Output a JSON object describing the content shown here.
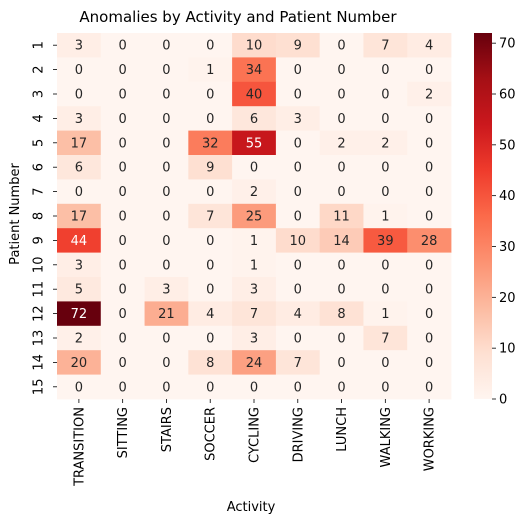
{
  "chart_data": {
    "type": "heatmap",
    "title": "Anomalies by Activity and Patient Number",
    "xlabel": "Activity",
    "ylabel": "Patient Number",
    "x_categories": [
      "TRANSITION",
      "SITTING",
      "STAIRS",
      "SOCCER",
      "CYCLING",
      "DRIVING",
      "LUNCH",
      "WALKING",
      "WORKING"
    ],
    "y_categories": [
      "1",
      "2",
      "3",
      "4",
      "5",
      "6",
      "7",
      "8",
      "9",
      "10",
      "11",
      "12",
      "13",
      "14",
      "15"
    ],
    "values": [
      [
        3,
        0,
        0,
        0,
        10,
        9,
        0,
        7,
        4
      ],
      [
        0,
        0,
        0,
        1,
        34,
        0,
        0,
        0,
        0
      ],
      [
        0,
        0,
        0,
        0,
        40,
        0,
        0,
        0,
        2
      ],
      [
        3,
        0,
        0,
        0,
        6,
        3,
        0,
        0,
        0
      ],
      [
        17,
        0,
        0,
        32,
        55,
        0,
        2,
        2,
        0
      ],
      [
        6,
        0,
        0,
        9,
        0,
        0,
        0,
        0,
        0
      ],
      [
        0,
        0,
        0,
        0,
        2,
        0,
        0,
        0,
        0
      ],
      [
        17,
        0,
        0,
        7,
        25,
        0,
        11,
        1,
        0
      ],
      [
        44,
        0,
        0,
        0,
        1,
        10,
        14,
        39,
        28
      ],
      [
        3,
        0,
        0,
        0,
        1,
        0,
        0,
        0,
        0
      ],
      [
        5,
        0,
        3,
        0,
        3,
        0,
        0,
        0,
        0
      ],
      [
        72,
        0,
        21,
        4,
        7,
        4,
        8,
        1,
        0
      ],
      [
        2,
        0,
        0,
        0,
        3,
        0,
        0,
        7,
        0
      ],
      [
        20,
        0,
        0,
        8,
        24,
        7,
        0,
        0,
        0
      ],
      [
        0,
        0,
        0,
        0,
        0,
        0,
        0,
        0,
        0
      ]
    ],
    "colormap": "Reds",
    "colorbar": {
      "range": [
        0,
        72
      ],
      "ticks": [
        0,
        10,
        20,
        30,
        40,
        50,
        60,
        70
      ]
    },
    "colorbar_placement": "right",
    "grid": false
  }
}
